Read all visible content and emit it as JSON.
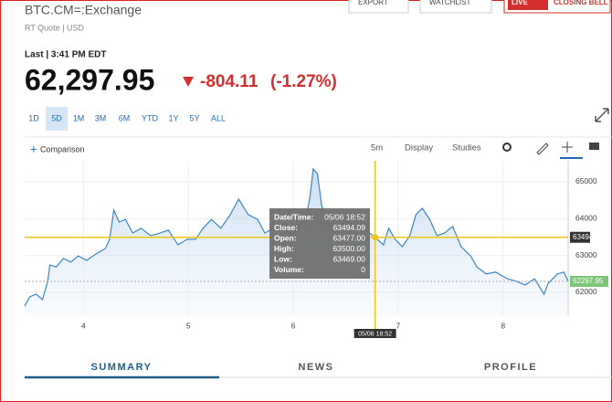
{
  "header": {
    "symbol": "BTC.CM=:Exchange",
    "quote_type": "RT Quote | USD",
    "buttons": [
      "EXPORT",
      "WATCHLIST",
      "LIVE",
      "CLOSING BELL"
    ]
  },
  "quote": {
    "time": "Last | 3:41 PM EDT",
    "price": "62,297.95",
    "change": "-804.11",
    "change_percent": "(-1.27%)"
  },
  "ranges": {
    "items": [
      "1D",
      "5D",
      "1M",
      "3M",
      "6M",
      "YTD",
      "1Y",
      "5Y",
      "ALL"
    ],
    "selected": 1
  },
  "toolbar": {
    "comparison": "Comparison",
    "interval": "5m",
    "display": "Display",
    "studies": "Studies"
  },
  "chart_data": {
    "type": "line",
    "color": "#3d85c6",
    "x": [
      3.44,
      3.49,
      3.55,
      3.61,
      3.66,
      3.68,
      3.74,
      3.81,
      3.88,
      3.95,
      4.03,
      4.12,
      4.21,
      4.25,
      4.29,
      4.34,
      4.4,
      4.47,
      4.55,
      4.64,
      4.73,
      4.81,
      4.9,
      4.99,
      5.07,
      5.14,
      5.22,
      5.31,
      5.4,
      5.48,
      5.57,
      5.66,
      5.73,
      5.81,
      5.9,
      5.99,
      6.06,
      6.12,
      6.16,
      6.19,
      6.23,
      6.27,
      6.34,
      6.43,
      6.51,
      6.6,
      6.69,
      6.78,
      6.86,
      6.91,
      6.97,
      7.04,
      7.11,
      7.17,
      7.23,
      7.3,
      7.37,
      7.44,
      7.52,
      7.6,
      7.69,
      7.75,
      7.84,
      7.93,
      8.04,
      8.13,
      8.21,
      8.3,
      8.39,
      8.43,
      8.52,
      8.58,
      8.62
    ],
    "values": [
      61630,
      61880,
      61950,
      61800,
      62300,
      62740,
      62690,
      62920,
      62820,
      62990,
      62870,
      63040,
      63190,
      63440,
      64230,
      63910,
      63980,
      63610,
      63740,
      63540,
      63610,
      63690,
      63290,
      63440,
      63440,
      63740,
      63980,
      63740,
      64110,
      64530,
      64110,
      63980,
      63610,
      63740,
      63860,
      63540,
      63860,
      63980,
      64600,
      65350,
      65220,
      64360,
      63790,
      63790,
      63930,
      63790,
      63690,
      63494,
      63290,
      63740,
      63440,
      63240,
      63540,
      64110,
      64280,
      63980,
      63540,
      63610,
      63790,
      63240,
      62990,
      62690,
      62500,
      62550,
      62370,
      62300,
      62200,
      62370,
      61950,
      62250,
      62500,
      62550,
      62297.95
    ],
    "xlim": [
      3.44,
      8.62
    ],
    "ylim": [
      61380,
      65570
    ],
    "xticks": [
      4,
      5,
      6,
      7,
      8
    ],
    "yticks": [
      62000,
      63000,
      64000,
      65000
    ],
    "grid": true,
    "crosshair_x": 6.78,
    "crosshair_value": 63494,
    "last_value": 62297.95,
    "tooltip": [
      [
        "Date/Time:",
        "05/06 18:52"
      ],
      [
        "Close:",
        "63494.09"
      ],
      [
        "Open:",
        "63477.00"
      ],
      [
        "High:",
        "63500.00"
      ],
      [
        "Low:",
        "63469.00"
      ],
      [
        "Volume:",
        "0"
      ]
    ]
  },
  "tabs": {
    "items": [
      "SUMMARY",
      "NEWS",
      "PROFILE"
    ],
    "selected": 0
  }
}
